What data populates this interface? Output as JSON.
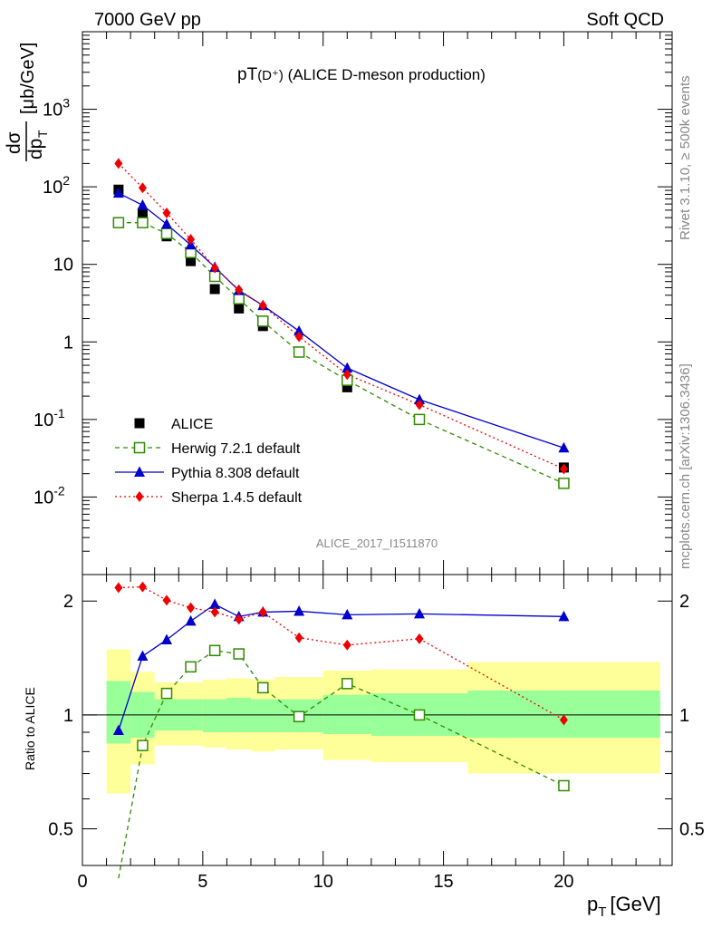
{
  "header": {
    "energy_label": "7000 GeV pp",
    "process_label": "Soft QCD"
  },
  "side": {
    "rivet_label": "Rivet 3.1.10, ≥ 500k events",
    "source_label": "mcplots.cern.ch [arXiv:1306.3436]"
  },
  "top_panel": {
    "title_main": "pT",
    "title_particle": "(D⁺)",
    "title_desc": " (ALICE D-meson production)",
    "analysis_id": "ALICE_2017_I1511870",
    "ylabel_num": "dσ",
    "ylabel_den": "dp",
    "ylabel_den_sub": "T",
    "ylabel_unit": "[μb/GeV]"
  },
  "bottom_panel": {
    "ylabel": "Ratio to ALICE",
    "xlabel": "p",
    "xlabel_sub": "T",
    "xlabel_unit": "[GeV]"
  },
  "colors": {
    "data": "#000000",
    "herwig": "#2e8b00",
    "pythia": "#0000cc",
    "sherpa": "#ee0000",
    "band_inner": "#99ff99",
    "band_outer": "#ffff99"
  },
  "chart_data": [
    {
      "type": "scatter",
      "panel": "main",
      "scale": "log",
      "xlim": [
        0,
        24.5
      ],
      "ylim": [
        0.001,
        10000
      ],
      "y_ticks": [
        {
          "v": 0.01,
          "base": "10",
          "exp": "-2"
        },
        {
          "v": 0.1,
          "base": "10",
          "exp": "-1"
        },
        {
          "v": 1,
          "base": "1",
          "exp": ""
        },
        {
          "v": 10,
          "base": "10",
          "exp": ""
        },
        {
          "v": 100,
          "base": "10",
          "exp": "2"
        },
        {
          "v": 1000,
          "base": "10",
          "exp": "3"
        }
      ],
      "x": [
        1.5,
        2.5,
        3.5,
        4.5,
        5.5,
        6.5,
        7.5,
        9.0,
        11.0,
        14.0,
        20.0
      ],
      "series": [
        {
          "name": "ALICE",
          "key": "data",
          "style": "data",
          "values": [
            92,
            44,
            23,
            11,
            4.8,
            2.7,
            1.6,
            0.75,
            0.26,
            0.1,
            0.024
          ]
        },
        {
          "name": "Herwig 7.2.1 default",
          "key": "herwig",
          "style": "herwig",
          "values": [
            34.5,
            34.5,
            25,
            14.2,
            7.0,
            3.6,
            1.85,
            0.74,
            0.32,
            0.1,
            0.015
          ]
        },
        {
          "name": "Pythia 8.308 default",
          "key": "pythia",
          "style": "pythia",
          "values": [
            83,
            58,
            33,
            17.8,
            9.2,
            4.6,
            2.95,
            1.38,
            0.46,
            0.18,
            0.043
          ]
        },
        {
          "name": "Sherpa 1.4.5 default",
          "key": "sherpa",
          "style": "sherpa",
          "values": [
            200,
            97,
            46,
            21,
            9.0,
            4.7,
            2.95,
            1.17,
            0.38,
            0.155,
            0.023
          ]
        }
      ],
      "legend_position": "lower-left"
    },
    {
      "type": "scatter",
      "panel": "ratio",
      "scale": "log",
      "xlim": [
        0,
        24.5
      ],
      "ylim": [
        0.4,
        2.35
      ],
      "x_ticks": [
        0,
        5,
        10,
        15,
        20
      ],
      "y_ticks": [
        {
          "v": 0.5,
          "label": "0.5"
        },
        {
          "v": 1,
          "label": "1"
        },
        {
          "v": 2,
          "label": "2"
        }
      ],
      "x": [
        1.5,
        2.5,
        3.5,
        4.5,
        5.5,
        6.5,
        7.5,
        9.0,
        11.0,
        14.0,
        20.0
      ],
      "series": [
        {
          "name": "Herwig 7.2.1 default",
          "key": "herwig",
          "values": [
            0.37,
            0.83,
            1.14,
            1.34,
            1.48,
            1.45,
            1.18,
            0.99,
            1.21,
            1.0,
            0.65
          ]
        },
        {
          "name": "Pythia 8.308 default",
          "key": "pythia",
          "values": [
            0.91,
            1.43,
            1.58,
            1.77,
            1.96,
            1.82,
            1.87,
            1.88,
            1.84,
            1.85,
            1.82
          ]
        },
        {
          "name": "Sherpa 1.4.5 default",
          "key": "sherpa",
          "values": [
            2.17,
            2.18,
            2.01,
            1.92,
            1.87,
            1.79,
            1.87,
            1.6,
            1.53,
            1.59,
            0.97
          ]
        }
      ],
      "bands": [
        {
          "x0": 1.0,
          "x1": 2.0,
          "outer": [
            0.62,
            1.49
          ],
          "inner": [
            0.84,
            1.23
          ]
        },
        {
          "x0": 2.0,
          "x1": 3.0,
          "outer": [
            0.74,
            1.3
          ],
          "inner": [
            0.87,
            1.15
          ]
        },
        {
          "x0": 3.0,
          "x1": 5.0,
          "outer": [
            0.83,
            1.22
          ],
          "inner": [
            0.91,
            1.1
          ]
        },
        {
          "x0": 5.0,
          "x1": 6.0,
          "outer": [
            0.82,
            1.24
          ],
          "inner": [
            0.9,
            1.1
          ]
        },
        {
          "x0": 6.0,
          "x1": 7.0,
          "outer": [
            0.81,
            1.25
          ],
          "inner": [
            0.9,
            1.11
          ]
        },
        {
          "x0": 7.0,
          "x1": 8.0,
          "outer": [
            0.8,
            1.24
          ],
          "inner": [
            0.9,
            1.1
          ]
        },
        {
          "x0": 8.0,
          "x1": 10.0,
          "outer": [
            0.81,
            1.26
          ],
          "inner": [
            0.9,
            1.1
          ]
        },
        {
          "x0": 10.0,
          "x1": 12.0,
          "outer": [
            0.76,
            1.31
          ],
          "inner": [
            0.89,
            1.13
          ]
        },
        {
          "x0": 12.0,
          "x1": 16.0,
          "outer": [
            0.75,
            1.32
          ],
          "inner": [
            0.88,
            1.14
          ]
        },
        {
          "x0": 16.0,
          "x1": 24.0,
          "outer": [
            0.7,
            1.38
          ],
          "inner": [
            0.87,
            1.16
          ]
        }
      ]
    }
  ]
}
